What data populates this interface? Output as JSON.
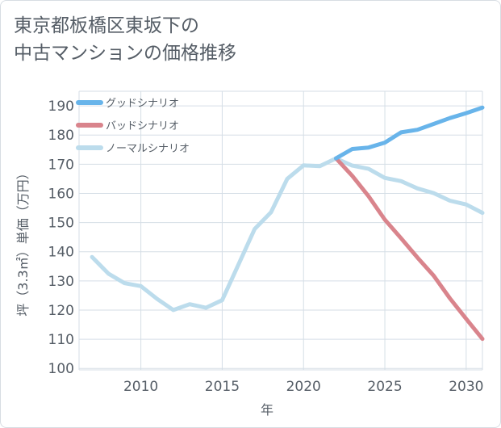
{
  "title": {
    "line1": "東京都板橋区東坂下の",
    "line2": "中古マンションの価格推移"
  },
  "chart_data": {
    "type": "line",
    "title": "東京都板橋区東坂下の中古マンションの価格推移",
    "xlabel": "年",
    "ylabel": "坪（3.3㎡）単価（万円）",
    "xlim": [
      2006.2,
      2031
    ],
    "ylim": [
      99.5,
      195
    ],
    "xticks": [
      2010,
      2015,
      2020,
      2025,
      2030
    ],
    "yticks": [
      100,
      110,
      120,
      130,
      140,
      150,
      160,
      170,
      180,
      190
    ],
    "legend_position": "top-left",
    "series": [
      {
        "name": "グッドシナリオ",
        "color": "#68b4ea",
        "x": [
          2022,
          2023,
          2024,
          2025,
          2026,
          2027,
          2028,
          2029,
          2030,
          2031
        ],
        "values": [
          172,
          175.2,
          175.7,
          177.4,
          180.9,
          181.8,
          183.8,
          185.8,
          187.5,
          189.4
        ]
      },
      {
        "name": "バッドシナリオ",
        "color": "#d9848c",
        "x": [
          2022,
          2023,
          2024,
          2025,
          2026,
          2027,
          2028,
          2029,
          2030,
          2031
        ],
        "values": [
          172,
          166,
          159,
          151,
          144.6,
          138,
          131.8,
          124,
          117,
          110.1
        ]
      },
      {
        "name": "ノーマルシナリオ",
        "color": "#bcdcec",
        "x": [
          2007,
          2008,
          2009,
          2010,
          2011,
          2012,
          2013,
          2014,
          2015,
          2016,
          2017,
          2018,
          2019,
          2020,
          2021,
          2022,
          2023,
          2024,
          2025,
          2026,
          2027,
          2028,
          2029,
          2030,
          2031
        ],
        "values": [
          138.2,
          132.5,
          129.2,
          128.2,
          123.8,
          120,
          122,
          120.8,
          123.4,
          135.6,
          147.8,
          153.5,
          165,
          169.6,
          169.3,
          172,
          169.5,
          168.4,
          165.3,
          164.2,
          161.7,
          160.1,
          157.5,
          156.2,
          153.3
        ]
      }
    ]
  }
}
